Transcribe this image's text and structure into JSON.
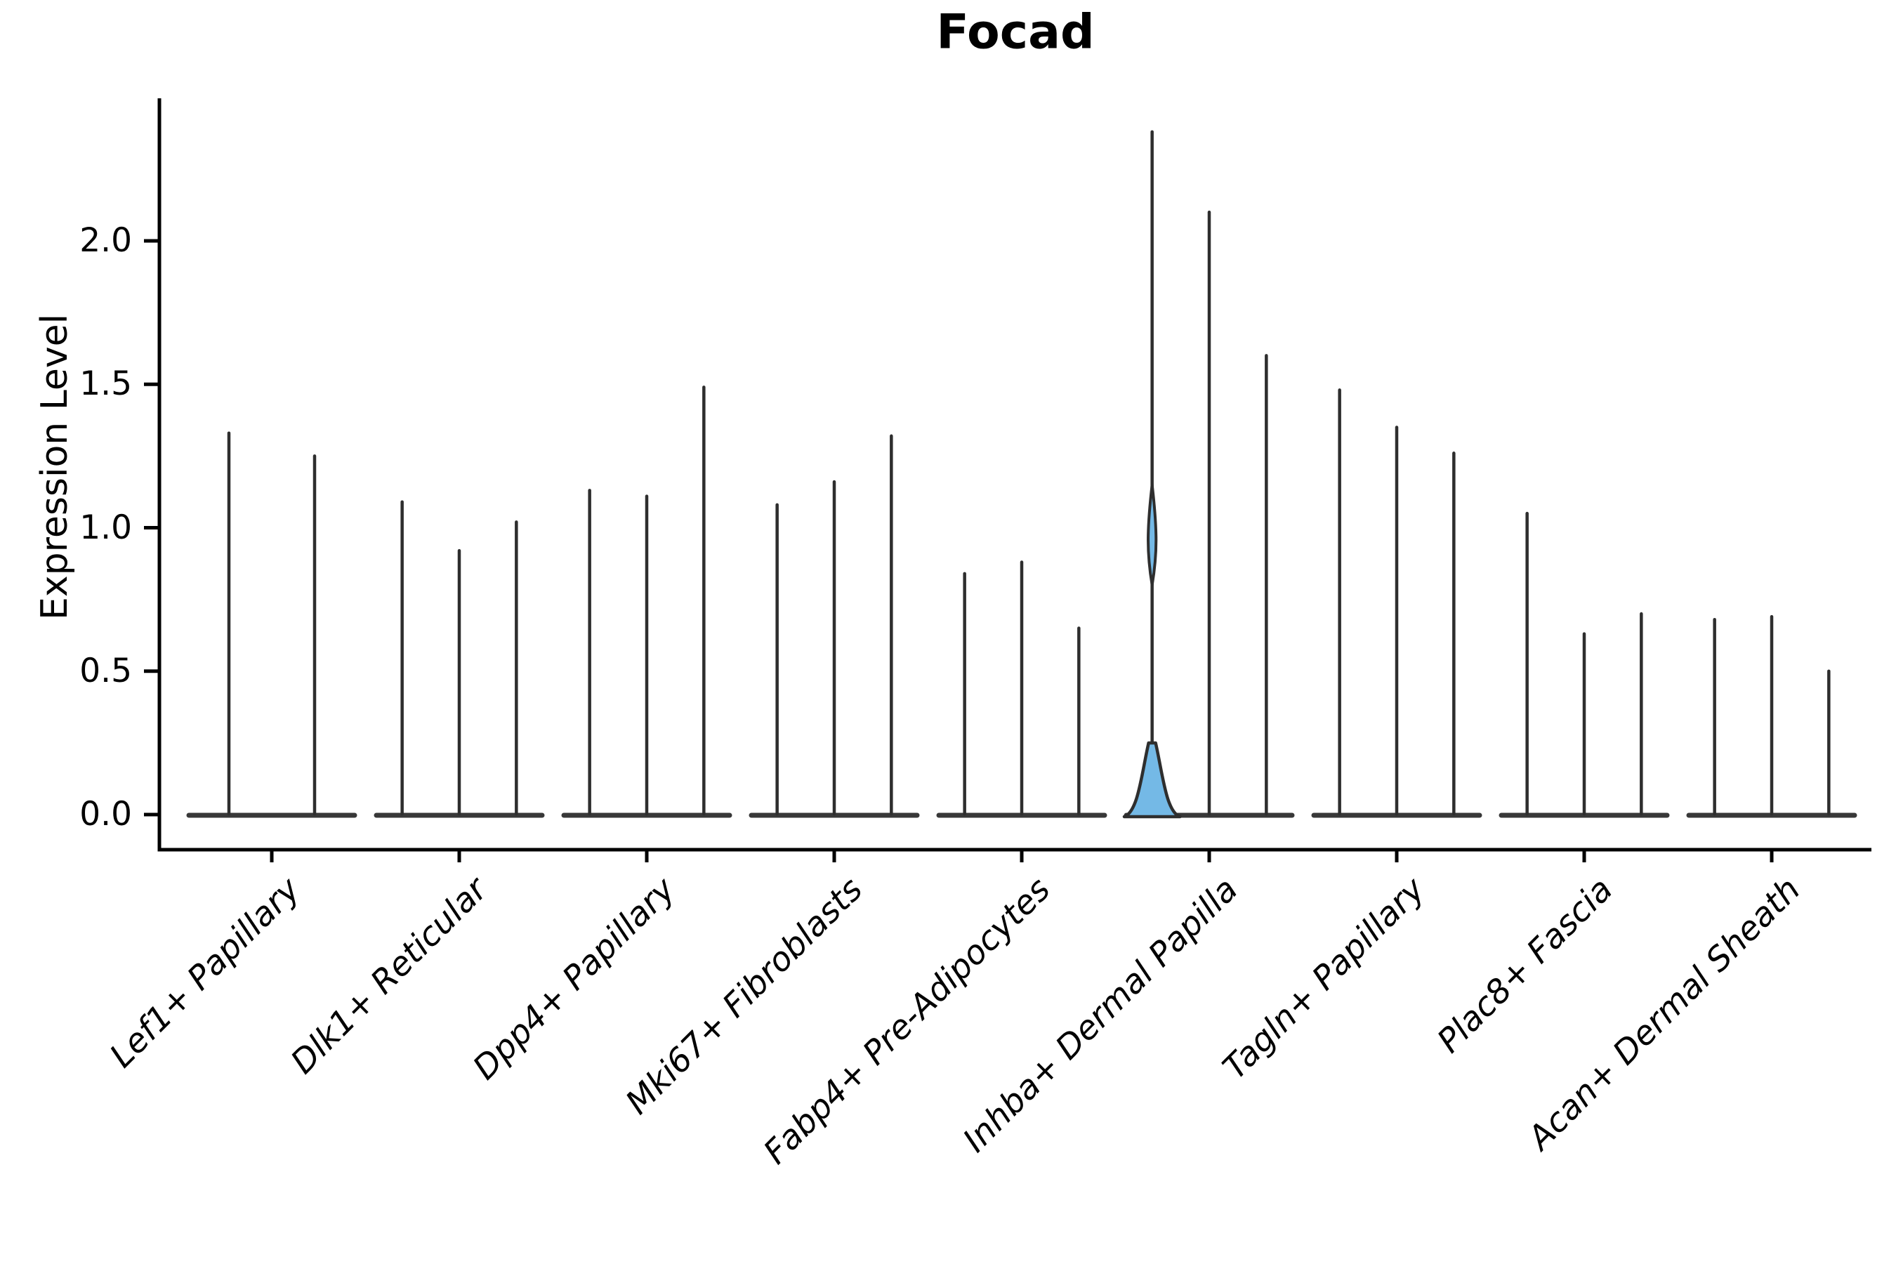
{
  "chart_data": {
    "type": "violin",
    "title": "Focad",
    "ylabel": "Expression Level",
    "xlabel": "",
    "ytick_labels": [
      "0.0",
      "0.5",
      "1.0",
      "1.5",
      "2.0"
    ],
    "yticks": [
      0.0,
      0.5,
      1.0,
      1.5,
      2.0
    ],
    "ylim": [
      -0.12,
      2.5
    ],
    "grid": false,
    "legend": false,
    "categories": [
      {
        "label": "Lef1+ Papillary",
        "violin_maxima": [
          1.33,
          1.25
        ]
      },
      {
        "label": "Dlk1+ Reticular",
        "violin_maxima": [
          1.09,
          0.92,
          1.02
        ]
      },
      {
        "label": "Dpp4+ Papillary",
        "violin_maxima": [
          1.13,
          1.11,
          1.49
        ]
      },
      {
        "label": "Mki67+ Fibroblasts",
        "violin_maxima": [
          1.08,
          1.16,
          1.32
        ]
      },
      {
        "label": "Fabp4+ Pre-Adipocytes",
        "violin_maxima": [
          0.84,
          0.88,
          0.65
        ]
      },
      {
        "label": "Inhba+ Dermal Papilla",
        "violin_maxima": [
          2.38,
          2.1,
          1.6
        ]
      },
      {
        "label": "Tagln+ Papillary",
        "violin_maxima": [
          1.48,
          1.35,
          1.26
        ]
      },
      {
        "label": "Plac8+ Fascia",
        "violin_maxima": [
          1.05,
          0.63,
          0.7
        ]
      },
      {
        "label": "Acan+ Dermal Sheath",
        "violin_maxima": [
          0.68,
          0.69,
          0.5
        ]
      }
    ],
    "highlighted_violin": {
      "category": "Inhba+ Dermal Papilla",
      "violin_index": 0,
      "fill": "#74b9e6",
      "base_bulge_top": 0.25,
      "upper_lens_range": [
        0.8,
        1.15
      ]
    },
    "colors": {
      "violin_stroke": "#2e2e2e",
      "baseline_stroke": "#383838",
      "axis": "#000000",
      "highlight_fill": "#74b9e6",
      "background": "#ffffff"
    }
  }
}
